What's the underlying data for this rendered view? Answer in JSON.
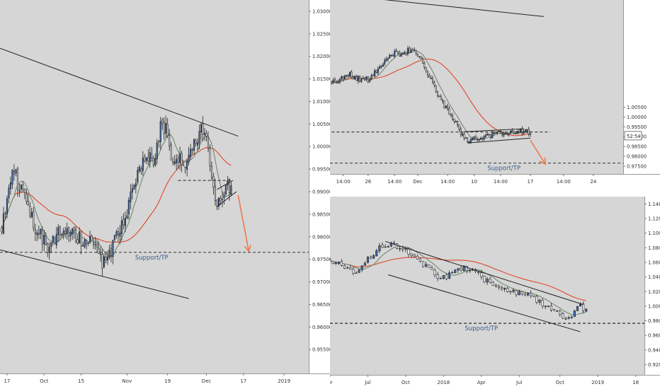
{
  "colors": {
    "plot_bg": "#d6d6d6",
    "axis_bg": "#ffffff",
    "up_candle": "#3e69b0",
    "down_candle": "#f2f2f2",
    "wick": "#222222",
    "ma_fast": "#6e8b6e",
    "ma_slow": "#e0472b",
    "trendline": "#222222",
    "support_line": "#333333",
    "support_label": "#3c5c8c",
    "arrow": "#ee7a4a",
    "axis_text": "#333333"
  },
  "chart_data": [
    {
      "id": "left",
      "type": "candlestick",
      "timeframe_hint": "daily",
      "title": "",
      "xlabel": "",
      "ylabel": "",
      "ylim": [
        0.9497,
        1.0325
      ],
      "x_ticks": [
        {
          "i": 3,
          "label": "17"
        },
        {
          "i": 24,
          "label": "Oct"
        },
        {
          "i": 45,
          "label": "15"
        },
        {
          "i": 71,
          "label": "Nov"
        },
        {
          "i": 94,
          "label": "19"
        },
        {
          "i": 116,
          "label": "Dec"
        },
        {
          "i": 137,
          "label": "17"
        },
        {
          "i": 160,
          "label": "2019"
        }
      ],
      "y_ticks": [
        "1.03000",
        "1.02500",
        "1.02000",
        "1.01500",
        "1.01000",
        "1.00500",
        "1.00000",
        "0.99500",
        "0.99000",
        "0.98500",
        "0.98000",
        "0.97500",
        "0.97000",
        "0.96500",
        "0.96000",
        "0.95500",
        "0.95000"
      ],
      "x_range": [
        -1,
        174
      ],
      "candles": [],
      "ma_fast": [],
      "ma_slow": [],
      "trendlines": [
        {
          "from": [
            -1,
            1.0218
          ],
          "to": [
            134,
            1.0023
          ]
        },
        {
          "from": [
            -1,
            0.9771
          ],
          "to": [
            106,
            0.9663
          ]
        },
        {
          "from": [
            100,
            0.9925
          ],
          "to": [
            130,
            0.9925
          ],
          "dashed": true
        },
        {
          "from": [
            122,
            0.9905
          ],
          "to": [
            131,
            0.9925
          ]
        },
        {
          "from": [
            122,
            0.9867
          ],
          "to": [
            133,
            0.99
          ]
        }
      ],
      "support": {
        "y": 0.97655,
        "label": "Support/TP",
        "label_at": 85
      },
      "arrow": {
        "from": [
          134,
          0.9892
        ],
        "to": [
          140,
          0.9768
        ]
      }
    },
    {
      "id": "top-right",
      "type": "candlestick",
      "timeframe_hint": "4-hour",
      "title": "",
      "xlabel": "",
      "ylabel": "",
      "ylim": [
        0.971,
        1.0596
      ],
      "x_ticks": [
        {
          "i": 7,
          "label": "14:00"
        },
        {
          "i": 22,
          "label": "26"
        },
        {
          "i": 38,
          "label": "14:00"
        },
        {
          "i": 52,
          "label": "Dec"
        },
        {
          "i": 70,
          "label": "14:00"
        },
        {
          "i": 86,
          "label": "10"
        },
        {
          "i": 102,
          "label": "14:00"
        },
        {
          "i": 120,
          "label": "17"
        },
        {
          "i": 140,
          "label": "14:00"
        },
        {
          "i": 158,
          "label": "24"
        }
      ],
      "y_ticks": [
        "1.00500",
        "1.00000",
        "0.99500",
        "0.99000",
        "0.98500",
        "0.98000",
        "0.97500"
      ],
      "x_range": [
        -1,
        176
      ],
      "price_tag": "52:54",
      "price_tag_y": 0.9905,
      "candles": [],
      "ma_fast": [],
      "ma_slow": [],
      "trendlines": [
        {
          "from": [
            0,
            1.0626
          ],
          "to": [
            128,
            1.0512
          ]
        },
        {
          "from": [
            80,
            0.9925
          ],
          "to": [
            116,
            0.994
          ]
        },
        {
          "from": [
            82,
            0.9868
          ],
          "to": [
            120,
            0.9893
          ]
        },
        {
          "from": [
            0,
            0.9924
          ],
          "to": [
            132,
            0.9924
          ],
          "dashed": true
        }
      ],
      "support": {
        "y": 0.97655,
        "label": "Support/TP",
        "label_at": 104
      },
      "arrow": {
        "from": [
          120,
          0.9882
        ],
        "to": [
          129,
          0.976
        ]
      }
    },
    {
      "id": "bottom-right",
      "type": "candlestick",
      "timeframe_hint": "weekly",
      "title": "",
      "xlabel": "",
      "ylabel": "",
      "ylim": [
        0.906,
        1.15
      ],
      "x_ticks": [
        {
          "i": 0,
          "label": "pr"
        },
        {
          "i": 13,
          "label": "Jul"
        },
        {
          "i": 26,
          "label": "Oct"
        },
        {
          "i": 39,
          "label": "2018"
        },
        {
          "i": 52,
          "label": "Apr"
        },
        {
          "i": 65,
          "label": "Jul"
        },
        {
          "i": 79,
          "label": "Oct"
        },
        {
          "i": 92,
          "label": "2019"
        },
        {
          "i": 105,
          "label": "18"
        }
      ],
      "y_ticks": [
        "1.14000",
        "1.12000",
        "1.10000",
        "1.08000",
        "1.06000",
        "1.04000",
        "1.02000",
        "1.00000",
        "0.98000",
        "0.96000",
        "0.94000",
        "0.92000"
      ],
      "x_range": [
        0,
        108
      ],
      "candles": [],
      "ma_fast": [],
      "ma_slow": [],
      "trendlines": [
        {
          "from": [
            19,
            1.0887
          ],
          "to": [
            87,
            1.0022
          ]
        },
        {
          "from": [
            20,
            1.043
          ],
          "to": [
            86,
            0.965
          ]
        },
        {
          "from": [
            0,
            0.97655
          ],
          "to": [
            108,
            0.97655
          ],
          "dashed": true
        }
      ],
      "support": {
        "y": 0.97655,
        "label": "Support/TP",
        "label_at": 52
      },
      "arrow": null
    }
  ]
}
